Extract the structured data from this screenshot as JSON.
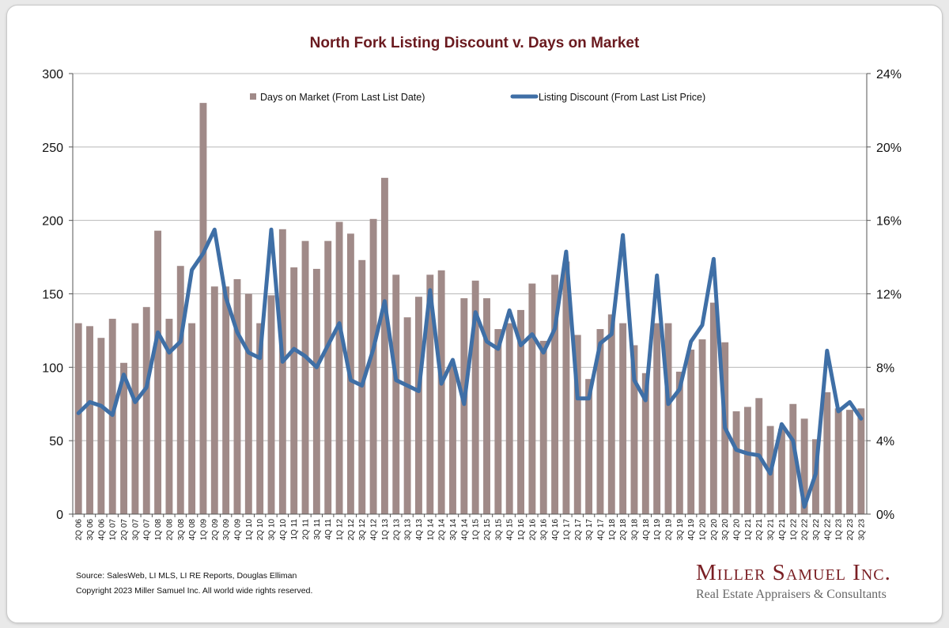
{
  "chart_data": {
    "type": "bar+line",
    "title": "North Fork Listing Discount v. Days on Market",
    "categories": [
      "2Q 06",
      "3Q 06",
      "4Q 06",
      "1Q 07",
      "2Q 07",
      "3Q 07",
      "4Q 07",
      "1Q 08",
      "2Q 08",
      "3Q 08",
      "4Q 08",
      "1Q 09",
      "2Q 09",
      "3Q 09",
      "4Q 09",
      "1Q 10",
      "2Q 10",
      "3Q 10",
      "4Q 10",
      "1Q 11",
      "2Q 11",
      "3Q 11",
      "4Q 11",
      "1Q 12",
      "2Q 12",
      "3Q 12",
      "4Q 12",
      "1Q 13",
      "2Q 13",
      "3Q 13",
      "4Q 13",
      "1Q 14",
      "2Q 14",
      "3Q 14",
      "4Q 14",
      "1Q 15",
      "2Q 15",
      "3Q 15",
      "4Q 15",
      "1Q 16",
      "2Q 16",
      "3Q 16",
      "4Q 16",
      "1Q 17",
      "2Q 17",
      "3Q 17",
      "4Q 17",
      "1Q 18",
      "2Q 18",
      "3Q 18",
      "4Q 18",
      "1Q 19",
      "2Q 19",
      "3Q 19",
      "4Q 19",
      "1Q 20",
      "2Q 20",
      "3Q 20",
      "4Q 20",
      "1Q 21",
      "2Q 21",
      "3Q 21",
      "4Q 21",
      "1Q 22",
      "2Q 22",
      "3Q 22",
      "4Q 22",
      "1Q 23",
      "2Q 23",
      "3Q 23"
    ],
    "series": [
      {
        "name": "Days on Market (From Last List Date)",
        "type": "bar",
        "axis": "left",
        "color": "#a08a88",
        "values": [
          130,
          128,
          120,
          133,
          103,
          130,
          141,
          193,
          133,
          169,
          130,
          280,
          155,
          155,
          160,
          150,
          130,
          149,
          194,
          168,
          186,
          167,
          186,
          199,
          191,
          173,
          201,
          229,
          163,
          134,
          148,
          163,
          166,
          101,
          147,
          159,
          147,
          126,
          130,
          139,
          157,
          118,
          163,
          172,
          122,
          92,
          126,
          136,
          130,
          115,
          96,
          130,
          130,
          97,
          112,
          119,
          144,
          117,
          70,
          73,
          79,
          60,
          58,
          75,
          65,
          51,
          83,
          72,
          71,
          72
        ]
      },
      {
        "name": "Listing Discount (From Last List Price)",
        "type": "line",
        "axis": "right",
        "color": "#3f6fa6",
        "values": [
          5.5,
          6.1,
          5.9,
          5.4,
          7.6,
          6.1,
          6.9,
          9.9,
          8.8,
          9.4,
          13.3,
          14.2,
          15.5,
          11.8,
          9.9,
          8.8,
          8.5,
          15.5,
          8.3,
          9.0,
          8.6,
          8.0,
          9.2,
          10.4,
          7.3,
          7.0,
          9.0,
          11.6,
          7.3,
          7.0,
          6.7,
          12.2,
          7.1,
          8.4,
          6.0,
          11.0,
          9.4,
          9.0,
          11.1,
          9.2,
          9.8,
          8.8,
          10.1,
          14.3,
          6.3,
          6.3,
          9.3,
          9.8,
          15.2,
          7.3,
          6.2,
          13.0,
          6.0,
          6.8,
          9.4,
          10.3,
          13.9,
          4.7,
          3.5,
          3.3,
          3.2,
          2.2,
          4.9,
          4.0,
          0.4,
          2.2,
          8.9,
          5.6,
          6.1,
          5.2
        ]
      }
    ],
    "y_left": {
      "min": 0,
      "max": 300,
      "ticks": [
        "0",
        "50",
        "100",
        "150",
        "200",
        "250",
        "300"
      ]
    },
    "y_right": {
      "min": 0,
      "max": 24,
      "ticks": [
        "0%",
        "4%",
        "8%",
        "12%",
        "16%",
        "20%",
        "24%"
      ]
    },
    "grid": true,
    "legend_position": "top"
  },
  "footer": {
    "source": "Source: SalesWeb, LI MLS, LI RE Reports, Douglas Elliman",
    "copyright": "Copyright 2023 Miller Samuel Inc.  All world wide rights reserved."
  },
  "logo": {
    "name": "Miller Samuel Inc.",
    "tagline": "Real Estate Appraisers & Consultants"
  }
}
